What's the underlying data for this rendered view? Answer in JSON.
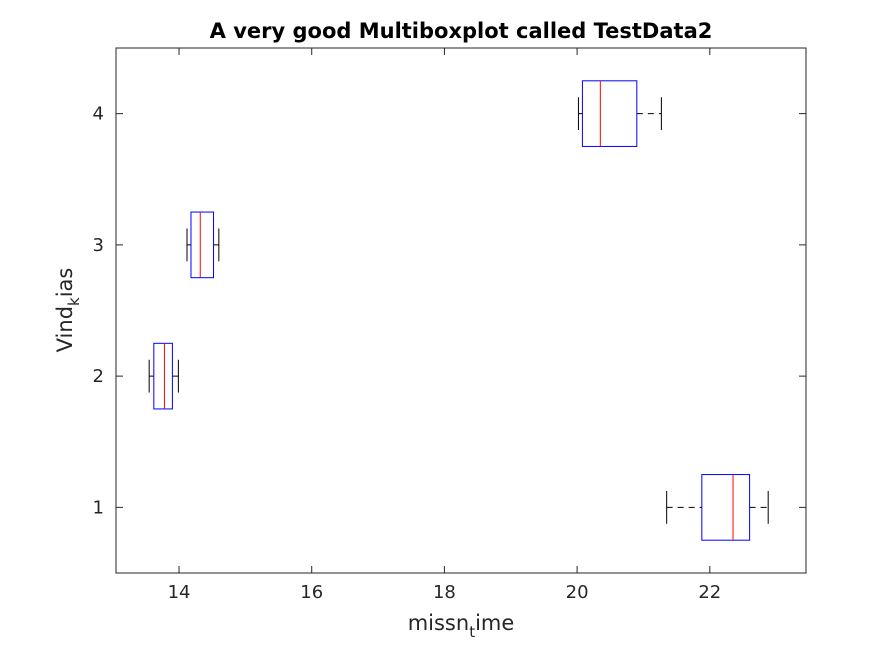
{
  "chart_data": {
    "type": "boxplot",
    "orientation": "horizontal",
    "title": "A very good Multiboxplot called TestData2",
    "xlabel": {
      "main": "missn",
      "sub": "t",
      "tail": "ime"
    },
    "ylabel": {
      "main": "Vind",
      "sub": "k",
      "tail": "ias"
    },
    "xlim": [
      13.05,
      23.45
    ],
    "ylim": [
      0.5,
      4.5
    ],
    "xticks": [
      14,
      16,
      18,
      20,
      22
    ],
    "yticks": [
      1,
      2,
      3,
      4
    ],
    "grid": false,
    "colors": {
      "box": "#0000ff",
      "median": "#ff0000",
      "whisker": "#000000",
      "axes": "#262626"
    },
    "boxes": [
      {
        "y": 1,
        "min": 21.35,
        "q1": 21.88,
        "median": 22.35,
        "q3": 22.6,
        "max": 22.88
      },
      {
        "y": 2,
        "min": 13.55,
        "q1": 13.62,
        "median": 13.78,
        "q3": 13.9,
        "max": 13.99
      },
      {
        "y": 3,
        "min": 14.12,
        "q1": 14.18,
        "median": 14.32,
        "q3": 14.52,
        "max": 14.6
      },
      {
        "y": 4,
        "min": 20.02,
        "q1": 20.08,
        "median": 20.35,
        "q3": 20.9,
        "max": 21.27
      }
    ]
  }
}
